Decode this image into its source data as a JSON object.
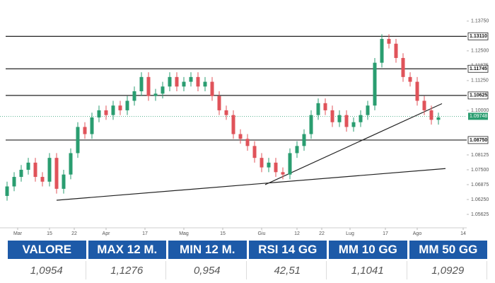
{
  "chart_data": {
    "type": "candlestick",
    "x": [
      2,
      4,
      6,
      8,
      10,
      12,
      14,
      16,
      18,
      20,
      22,
      24,
      26,
      28,
      30,
      32,
      34,
      36,
      38,
      40,
      42,
      44,
      46,
      48,
      50,
      52,
      54,
      56,
      58,
      60,
      62,
      64,
      66,
      68,
      70,
      72,
      74,
      76,
      78,
      80,
      82,
      84,
      86,
      88,
      90,
      92,
      94,
      96,
      98,
      100,
      102,
      104,
      106,
      108,
      110,
      112,
      114,
      116,
      118,
      120,
      122,
      124
    ],
    "open": [
      1.064,
      1.068,
      1.072,
      1.075,
      1.078,
      1.072,
      1.07,
      1.08,
      1.067,
      1.073,
      1.082,
      1.093,
      1.09,
      1.097,
      1.1,
      1.098,
      1.102,
      1.1,
      1.104,
      1.108,
      1.114,
      1.106,
      1.107,
      1.11,
      1.114,
      1.11,
      1.112,
      1.114,
      1.11,
      1.112,
      1.106,
      1.1,
      1.098,
      1.09,
      1.088,
      1.085,
      1.08,
      1.076,
      1.078,
      1.074,
      1.073,
      1.082,
      1.085,
      1.09,
      1.098,
      1.103,
      1.1,
      1.095,
      1.098,
      1.093,
      1.095,
      1.098,
      1.102,
      1.12,
      1.13,
      1.128,
      1.122,
      1.114,
      1.112,
      1.104,
      1.1,
      1.096
    ],
    "high": [
      1.07,
      1.074,
      1.077,
      1.08,
      1.08,
      1.074,
      1.082,
      1.082,
      1.075,
      1.084,
      1.095,
      1.095,
      1.099,
      1.102,
      1.102,
      1.104,
      1.104,
      1.106,
      1.11,
      1.116,
      1.116,
      1.109,
      1.112,
      1.116,
      1.116,
      1.114,
      1.116,
      1.116,
      1.114,
      1.114,
      1.108,
      1.102,
      1.1,
      1.092,
      1.09,
      1.087,
      1.082,
      1.08,
      1.08,
      1.076,
      1.084,
      1.087,
      1.092,
      1.1,
      1.105,
      1.105,
      1.102,
      1.1,
      1.1,
      1.097,
      1.1,
      1.104,
      1.122,
      1.132,
      1.132,
      1.13,
      1.124,
      1.116,
      1.114,
      1.106,
      1.102,
      1.099
    ],
    "low": [
      1.062,
      1.066,
      1.07,
      1.073,
      1.07,
      1.068,
      1.068,
      1.065,
      1.065,
      1.071,
      1.08,
      1.088,
      1.088,
      1.095,
      1.096,
      1.096,
      1.098,
      1.098,
      1.102,
      1.106,
      1.104,
      1.104,
      1.105,
      1.108,
      1.108,
      1.108,
      1.11,
      1.108,
      1.108,
      1.104,
      1.098,
      1.096,
      1.088,
      1.086,
      1.083,
      1.078,
      1.074,
      1.074,
      1.072,
      1.071,
      1.071,
      1.08,
      1.083,
      1.088,
      1.096,
      1.098,
      1.093,
      1.093,
      1.091,
      1.091,
      1.093,
      1.096,
      1.1,
      1.118,
      1.126,
      1.12,
      1.112,
      1.11,
      1.102,
      1.098,
      1.094,
      1.094
    ],
    "close": [
      1.068,
      1.072,
      1.075,
      1.078,
      1.072,
      1.07,
      1.08,
      1.067,
      1.073,
      1.082,
      1.093,
      1.09,
      1.097,
      1.1,
      1.098,
      1.102,
      1.1,
      1.104,
      1.108,
      1.114,
      1.106,
      1.107,
      1.11,
      1.114,
      1.11,
      1.112,
      1.114,
      1.11,
      1.112,
      1.106,
      1.1,
      1.098,
      1.09,
      1.088,
      1.085,
      1.08,
      1.076,
      1.078,
      1.074,
      1.073,
      1.082,
      1.085,
      1.09,
      1.098,
      1.103,
      1.1,
      1.095,
      1.098,
      1.093,
      1.095,
      1.098,
      1.102,
      1.12,
      1.13,
      1.128,
      1.122,
      1.114,
      1.112,
      1.104,
      1.1,
      1.096,
      1.097
    ],
    "up_color": "#2a9d70",
    "down_color": "#e0535a",
    "xlim": [
      0,
      132
    ],
    "xticks": [
      {
        "value": 5,
        "label": "Mar"
      },
      14,
      21,
      {
        "value": 30,
        "label": "Apr"
      },
      41,
      {
        "value": 52,
        "label": "Mag"
      },
      63,
      {
        "value": 74,
        "label": "Giu"
      },
      84,
      91,
      {
        "value": 99,
        "label": "Lug"
      },
      109,
      {
        "value": 118,
        "label": "Ago"
      },
      131
    ],
    "xtick_texts": [
      "Mar",
      "15",
      "22",
      "Apr",
      "17",
      "Mag",
      "15",
      "Giu",
      "12",
      "22",
      "Lug",
      "17",
      "Ago",
      "14"
    ],
    "ylim": [
      1.0506,
      1.1434
    ],
    "yticks": [
      {
        "value": 1.1375,
        "label": "1.13750"
      },
      {
        "value": 1.125,
        "label": "1.12500"
      },
      {
        "value": 1.11875,
        "label": "1.11875"
      },
      {
        "value": 1.1125,
        "label": "1.11250"
      },
      {
        "value": 1.1,
        "label": "1.10000"
      },
      {
        "value": 1.08125,
        "label": "1.08125"
      },
      {
        "value": 1.075,
        "label": "1.07500"
      },
      {
        "value": 1.06875,
        "label": "1.06875"
      },
      {
        "value": 1.0625,
        "label": "1.06250"
      },
      {
        "value": 1.05625,
        "label": "1.05625"
      }
    ],
    "levels": [
      {
        "value": 1.1311,
        "label": "1.13110"
      },
      {
        "value": 1.11745,
        "label": "1.11745"
      },
      {
        "value": 1.10625,
        "label": "1.10625"
      },
      {
        "value": 1.0875,
        "label": "1.08750"
      }
    ],
    "last_price": {
      "value": 1.09748,
      "label": "1.09748"
    },
    "trendlines": [
      {
        "x": [
          16,
          126
        ],
        "y": [
          1.0622,
          1.0755
        ]
      },
      {
        "x": [
          75,
          125
        ],
        "y": [
          1.06875,
          1.1028
        ]
      }
    ]
  },
  "table": {
    "headers": [
      "VALORE",
      "MAX 12 M.",
      "MIN 12 M.",
      "RSI 14 GG",
      "MM 10 GG",
      "MM 50 GG"
    ],
    "values": [
      "1,0954",
      "1,1276",
      "0,954",
      "42,51",
      "1,1041",
      "1,0929"
    ]
  }
}
